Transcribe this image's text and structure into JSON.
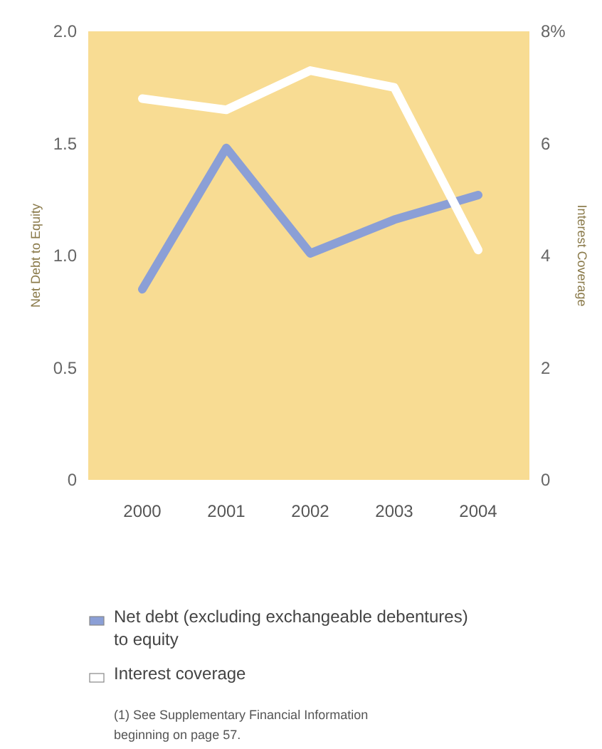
{
  "chart_data": {
    "type": "line",
    "ylabel": "Net Debt to Equity",
    "y2label": "Interest Coverage",
    "categories": [
      "2000",
      "2001",
      "2002",
      "2003",
      "2004"
    ],
    "series": [
      {
        "name": "Net debt (excluding exchangeable debentures) to equity",
        "color": "#8b9fd6",
        "values": [
          0.85,
          1.48,
          1.01,
          1.16,
          1.27
        ]
      },
      {
        "name": "Interest coverage",
        "color": "#ffffff",
        "axis": "y2",
        "values": [
          6.8,
          6.6,
          7.3,
          7.0,
          4.1
        ]
      }
    ],
    "ylim": [
      0,
      2
    ],
    "yticks": [
      0,
      0.5,
      {
        "value": 1,
        "label": "1.0"
      },
      1.5,
      {
        "value": 2,
        "label": "2.0"
      }
    ],
    "y2lim": [
      0,
      8
    ],
    "y2ticks": [
      0,
      2,
      4,
      6,
      {
        "value": 8,
        "label": "8%"
      }
    ],
    "grid": false,
    "legend": "bottom",
    "marker": "none",
    "line_style": "solid",
    "annotations": [
      "(1) See Supplementary Financial Information beginning on page 57."
    ]
  }
}
